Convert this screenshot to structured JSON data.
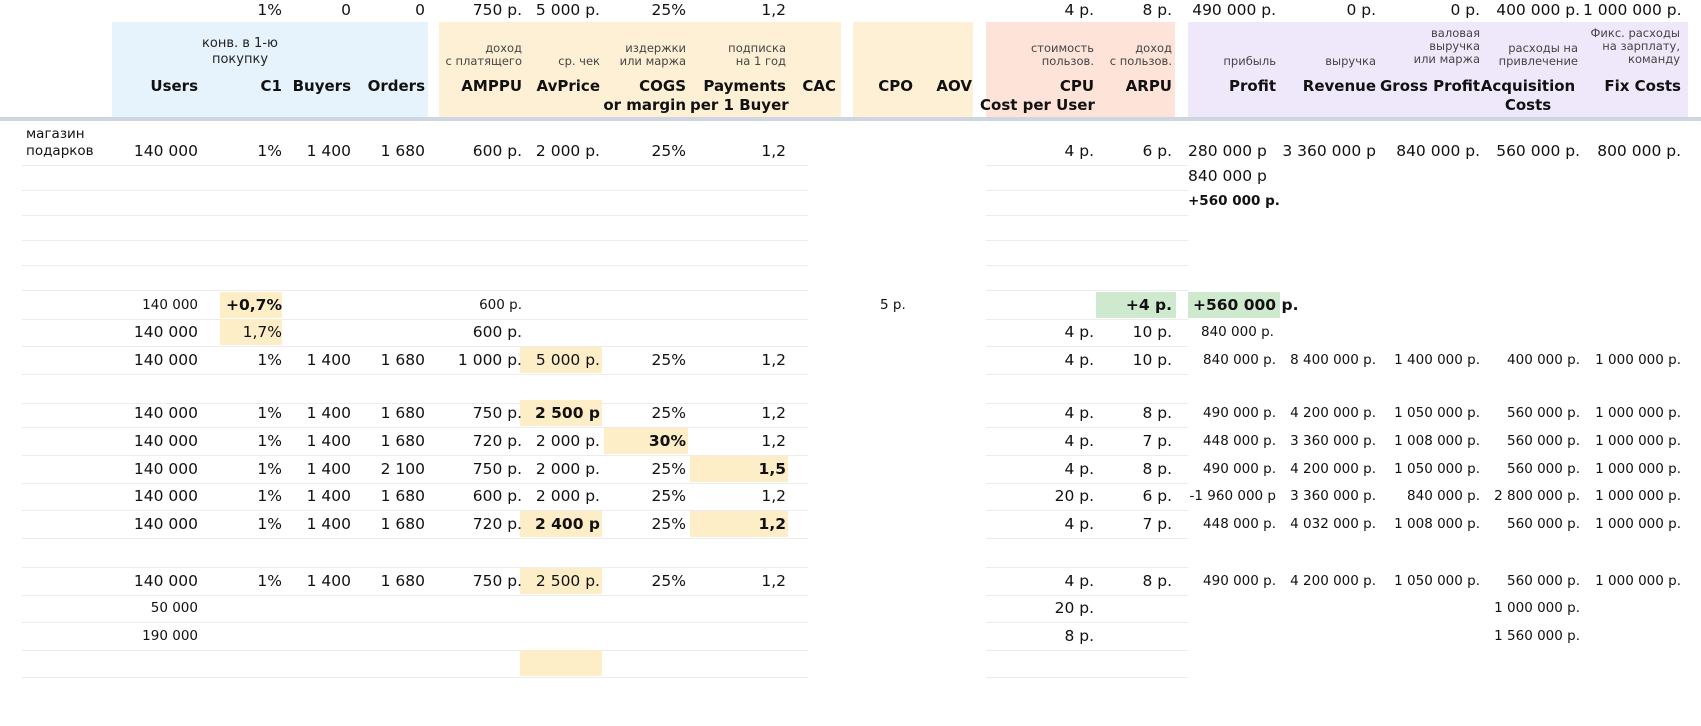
{
  "headers": {
    "users": "Users",
    "c1_sub": "конв. в 1-ю\nпокупку",
    "c1": "C1",
    "buyers": "Buyers",
    "orders": "Orders",
    "amppu_sub": "доход\nс платящего",
    "amppu": "AMPPU",
    "avprice_sub": "ср. чек",
    "avprice": "AvPrice",
    "cogs_sub": "издержки\nили маржа",
    "cogs": "COGS\nor margin",
    "payments_sub": "подписка\nна 1 год",
    "payments": "Payments\nper 1 Buyer",
    "cac": "CAC",
    "cpo": "CPO",
    "aov": "AOV",
    "cpu_sub": "стоимость\nпользов.",
    "cpu": "CPU\nCost per User",
    "arpu_sub": "доход\nс пользов.",
    "arpu": "ARPU",
    "profit_sub": "прибыль",
    "profit": "Profit",
    "revenue_sub": "выручка",
    "revenue": "Revenue",
    "gross_sub": "валовая\nвыручка\nили маржа",
    "gross": "Gross Profit",
    "acq_sub": "расходы на\nпривлечение",
    "acq": "Acquisition\nCosts",
    "fix_sub": "Фикс. расходы\nна зарплату,\nкоманду",
    "fix": "Fix Costs"
  },
  "row_label": "магазин\nподарков",
  "rows": [
    {
      "users": "140 000",
      "c1": "1%",
      "buyers": "1 400",
      "orders": "1 680",
      "amppu": "600 р.",
      "avprice": "2 000 р.",
      "cogs": "25%",
      "payments": "1,2",
      "cpu": "4 р.",
      "arpu": "6 р.",
      "profit": "280 000 р",
      "revenue": "3 360 000 р",
      "gross": "840 000 р.",
      "acq": "560 000 р.",
      "fix": "800 000 р."
    },
    {
      "profit": "840 000 р"
    },
    {
      "profit": "+560 000 р."
    },
    {},
    {},
    {},
    {
      "users": "140 000",
      "c1": "+0,7%",
      "amppu": "600 р.",
      "cac": "5 р.",
      "arpu": "+4 р.",
      "profit": "+560 000 р."
    },
    {
      "users": "140 000",
      "c1": "1,7%",
      "amppu": "600 р.",
      "cpu": "4 р.",
      "arpu": "10 р.",
      "profit": "840 000 р."
    },
    {
      "users": "140 000",
      "c1": "1%",
      "buyers": "1 400",
      "orders": "1 680",
      "amppu": "1 000 р.",
      "avprice": "5 000 р.",
      "cogs": "25%",
      "payments": "1,2",
      "cpu": "4 р.",
      "arpu": "10 р.",
      "profit": "840 000 р.",
      "revenue": "8 400 000 р.",
      "gross": "1 400 000 р.",
      "acq": "400 000 р.",
      "fix": "1 000 000 р."
    },
    {},
    {
      "users": "140 000",
      "c1": "1%",
      "buyers": "1 400",
      "orders": "1 680",
      "amppu": "750 р.",
      "avprice": "2 500 р",
      "cogs": "25%",
      "payments": "1,2",
      "cpu": "4 р.",
      "arpu": "8 р.",
      "profit": "490 000 р.",
      "revenue": "4 200 000 р.",
      "gross": "1 050 000 р.",
      "acq": "560 000 р.",
      "fix": "1 000 000 р."
    },
    {
      "users": "140 000",
      "c1": "1%",
      "buyers": "1 400",
      "orders": "1 680",
      "amppu": "720 р.",
      "avprice": "2 000 р.",
      "cogs": "30%",
      "payments": "1,2",
      "cpu": "4 р.",
      "arpu": "7 р.",
      "profit": "448 000 р.",
      "revenue": "3 360 000 р.",
      "gross": "1 008 000 р.",
      "acq": "560 000 р.",
      "fix": "1 000 000 р."
    },
    {
      "users": "140 000",
      "c1": "1%",
      "buyers": "1 400",
      "orders": "2 100",
      "amppu": "750 р.",
      "avprice": "2 000 р.",
      "cogs": "25%",
      "payments": "1,5",
      "cpu": "4 р.",
      "arpu": "8 р.",
      "profit": "490 000 р.",
      "revenue": "4 200 000 р.",
      "gross": "1 050 000 р.",
      "acq": "560 000 р.",
      "fix": "1 000 000 р."
    },
    {
      "users": "140 000",
      "c1": "1%",
      "buyers": "1 400",
      "orders": "1 680",
      "amppu": "600 р.",
      "avprice": "2 000 р.",
      "cogs": "25%",
      "payments": "1,2",
      "cpu": "20 р.",
      "arpu": "6 р.",
      "profit": "-1 960 000 р",
      "revenue": "3 360 000 р.",
      "gross": "840 000 р.",
      "acq": "2 800 000 р.",
      "fix": "1 000 000 р."
    },
    {
      "users": "140 000",
      "c1": "1%",
      "buyers": "1 400",
      "orders": "1 680",
      "amppu": "720 р.",
      "avprice": "2 400 р",
      "cogs": "25%",
      "payments": "1,2",
      "cpu": "4 р.",
      "arpu": "7 р.",
      "profit": "448 000 р.",
      "revenue": "4 032 000 р.",
      "gross": "1 008 000 р.",
      "acq": "560 000 р.",
      "fix": "1 000 000 р."
    },
    {},
    {
      "users": "140 000",
      "c1": "1%",
      "buyers": "1 400",
      "orders": "1 680",
      "amppu": "750 р.",
      "avprice": "2 500 р.",
      "cogs": "25%",
      "payments": "1,2",
      "cpu": "4 р.",
      "arpu": "8 р.",
      "profit": "490 000 р.",
      "revenue": "4 200 000 р.",
      "gross": "1 050 000 р.",
      "acq": "560 000 р.",
      "fix": "1 000 000 р."
    },
    {
      "users": "50 000",
      "cpu": "20 р.",
      "acq": "1 000 000 р."
    },
    {
      "users": "190 000",
      "cpu": "8 р.",
      "acq": "1 560 000 р."
    },
    {},
    {
      "c1": "1%",
      "buyers": "0",
      "orders": "0",
      "amppu": "750 р.",
      "avprice": "5 000 р.",
      "cogs": "25%",
      "payments": "1,2",
      "cpu": "4 р.",
      "arpu": "8 р.",
      "profit": "490 000 р.",
      "revenue": "0 р.",
      "gross": "0 р.",
      "acq": "400 000 р.",
      "fix": "1 000 000 р."
    }
  ],
  "highlight_colors": {
    "orange": "#fdeec8",
    "green": "#cfe9cf",
    "blue_band": "#e6f3fc",
    "orange_band": "#fdf0d5",
    "salmon_band": "#fde3d8",
    "purple_band": "#efe8fb"
  }
}
